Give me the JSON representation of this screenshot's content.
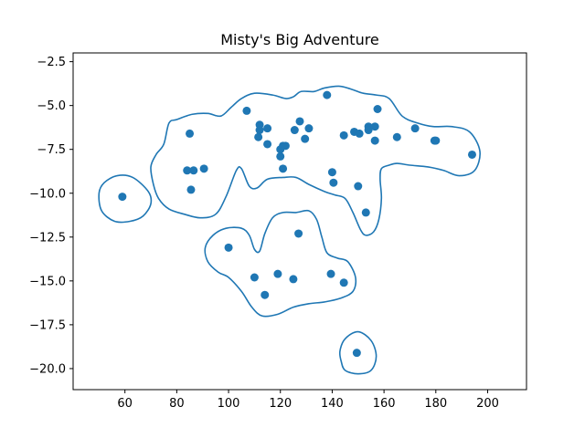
{
  "chart_data": {
    "type": "scatter",
    "title": "Misty's Big Adventure",
    "xlabel": "",
    "ylabel": "",
    "xlim": [
      40,
      215
    ],
    "ylim": [
      -21.2,
      -2.0
    ],
    "xticks": [
      60,
      80,
      100,
      120,
      140,
      160,
      180,
      200
    ],
    "yticks": [
      -2.5,
      -5.0,
      -7.5,
      -10.0,
      -12.5,
      -15.0,
      -17.5,
      -20.0
    ],
    "xtick_labels": [
      "60",
      "80",
      "100",
      "120",
      "140",
      "160",
      "180",
      "200"
    ],
    "ytick_labels": [
      "−2.5",
      "−5.0",
      "−7.5",
      "−10.0",
      "−12.5",
      "−15.0",
      "−17.5",
      "−20.0"
    ],
    "grid": false,
    "colors": {
      "points": "#1f77b4",
      "contours": "#1f77b4"
    },
    "series": [
      {
        "points": [
          [
            59,
            -10.2
          ],
          [
            84,
            -8.7
          ],
          [
            85,
            -6.6
          ],
          [
            85.5,
            -9.8
          ],
          [
            86.5,
            -8.7
          ],
          [
            90.5,
            -8.6
          ],
          [
            100,
            -13.1
          ],
          [
            107,
            -5.3
          ],
          [
            110,
            -14.8
          ],
          [
            111.5,
            -6.8
          ],
          [
            112,
            -6.1
          ],
          [
            112,
            -6.4
          ],
          [
            114,
            -15.8
          ],
          [
            115,
            -7.2
          ],
          [
            115,
            -6.3
          ],
          [
            119,
            -14.6
          ],
          [
            120,
            -7.9
          ],
          [
            120,
            -7.5
          ],
          [
            121,
            -8.6
          ],
          [
            121,
            -7.3
          ],
          [
            122,
            -7.3
          ],
          [
            125,
            -14.9
          ],
          [
            125.5,
            -6.4
          ],
          [
            127,
            -12.3
          ],
          [
            127.5,
            -5.9
          ],
          [
            129.5,
            -6.9
          ],
          [
            131,
            -6.3
          ],
          [
            138,
            -4.4
          ],
          [
            139.5,
            -14.6
          ],
          [
            140,
            -8.8
          ],
          [
            140.5,
            -9.4
          ],
          [
            144.5,
            -6.7
          ],
          [
            144.5,
            -15.1
          ],
          [
            148.5,
            -6.5
          ],
          [
            149.5,
            -19.1
          ],
          [
            150,
            -9.6
          ],
          [
            150.5,
            -6.6
          ],
          [
            153,
            -11.1
          ],
          [
            154,
            -6.2
          ],
          [
            154,
            -6.4
          ],
          [
            156.5,
            -6.2
          ],
          [
            156.5,
            -7.0
          ],
          [
            157.5,
            -5.2
          ],
          [
            165,
            -6.8
          ],
          [
            172,
            -6.3
          ],
          [
            179.5,
            -7.0
          ],
          [
            180,
            -7.0
          ],
          [
            194,
            -7.8
          ]
        ]
      }
    ],
    "contours": [
      [
        [
          71,
          -9.5
        ],
        [
          70,
          -8.5
        ],
        [
          72,
          -7.8
        ],
        [
          75,
          -7.2
        ],
        [
          77,
          -6.0
        ],
        [
          80,
          -5.8
        ],
        [
          86,
          -5.5
        ],
        [
          92,
          -5.45
        ],
        [
          97,
          -5.6
        ],
        [
          101,
          -5.1
        ],
        [
          105,
          -4.6
        ],
        [
          110,
          -4.3
        ],
        [
          117,
          -4.4
        ],
        [
          122,
          -4.6
        ],
        [
          125,
          -4.5
        ],
        [
          128,
          -4.2
        ],
        [
          133,
          -4.2
        ],
        [
          137,
          -4.0
        ],
        [
          143,
          -3.9
        ],
        [
          148,
          -4.1
        ],
        [
          152,
          -4.3
        ],
        [
          157,
          -4.4
        ],
        [
          162,
          -4.6
        ],
        [
          167,
          -5.6
        ],
        [
          173,
          -6.0
        ],
        [
          179,
          -6.2
        ],
        [
          186,
          -6.2
        ],
        [
          193,
          -6.5
        ],
        [
          197,
          -7.6
        ],
        [
          195,
          -8.7
        ],
        [
          189,
          -9.0
        ],
        [
          183,
          -8.7
        ],
        [
          177,
          -8.5
        ],
        [
          170,
          -8.4
        ],
        [
          165,
          -8.3
        ],
        [
          162,
          -8.4
        ],
        [
          159,
          -8.6
        ],
        [
          158.5,
          -9.2
        ],
        [
          159,
          -10.3
        ],
        [
          158,
          -11.5
        ],
        [
          156,
          -12.2
        ],
        [
          153,
          -12.4
        ],
        [
          151,
          -12.1
        ],
        [
          148,
          -11.1
        ],
        [
          145,
          -10.3
        ],
        [
          141,
          -10.1
        ],
        [
          137,
          -9.9
        ],
        [
          131,
          -9.5
        ],
        [
          126,
          -9.1
        ],
        [
          121,
          -9.1
        ],
        [
          115,
          -9.2
        ],
        [
          111,
          -9.7
        ],
        [
          108,
          -9.6
        ],
        [
          105,
          -8.6
        ],
        [
          103,
          -8.7
        ],
        [
          99,
          -10.2
        ],
        [
          95,
          -11.2
        ],
        [
          89,
          -11.4
        ],
        [
          83,
          -11.2
        ],
        [
          77,
          -10.9
        ],
        [
          73,
          -10.3
        ]
      ],
      [
        [
          50,
          -10.0
        ],
        [
          52,
          -9.4
        ],
        [
          57,
          -9.0
        ],
        [
          63,
          -9.1
        ],
        [
          69,
          -9.9
        ],
        [
          70,
          -10.6
        ],
        [
          67,
          -11.3
        ],
        [
          62,
          -11.6
        ],
        [
          56,
          -11.6
        ],
        [
          51,
          -11.0
        ]
      ],
      [
        [
          91,
          -13.1
        ],
        [
          94,
          -12.4
        ],
        [
          99,
          -12.0
        ],
        [
          105,
          -12.0
        ],
        [
          108,
          -12.4
        ],
        [
          110,
          -13.2
        ],
        [
          112,
          -13.3
        ],
        [
          114,
          -12.3
        ],
        [
          117,
          -11.4
        ],
        [
          121,
          -11.1
        ],
        [
          126,
          -11.1
        ],
        [
          131,
          -11.0
        ],
        [
          134,
          -11.5
        ],
        [
          136,
          -12.5
        ],
        [
          138,
          -13.4
        ],
        [
          142,
          -13.7
        ],
        [
          146,
          -13.9
        ],
        [
          149,
          -14.8
        ],
        [
          148,
          -15.6
        ],
        [
          143,
          -16.0
        ],
        [
          137,
          -16.2
        ],
        [
          131,
          -16.3
        ],
        [
          125,
          -16.5
        ],
        [
          119,
          -16.9
        ],
        [
          113,
          -17.0
        ],
        [
          109,
          -16.5
        ],
        [
          105,
          -15.6
        ],
        [
          100,
          -14.8
        ],
        [
          96,
          -14.5
        ],
        [
          92,
          -13.9
        ]
      ],
      [
        [
          143,
          -19.0
        ],
        [
          145,
          -18.3
        ],
        [
          150,
          -17.9
        ],
        [
          155,
          -18.4
        ],
        [
          157,
          -19.3
        ],
        [
          155,
          -20.1
        ],
        [
          150,
          -20.3
        ],
        [
          145,
          -20.1
        ],
        [
          143.5,
          -19.6
        ]
      ]
    ]
  }
}
